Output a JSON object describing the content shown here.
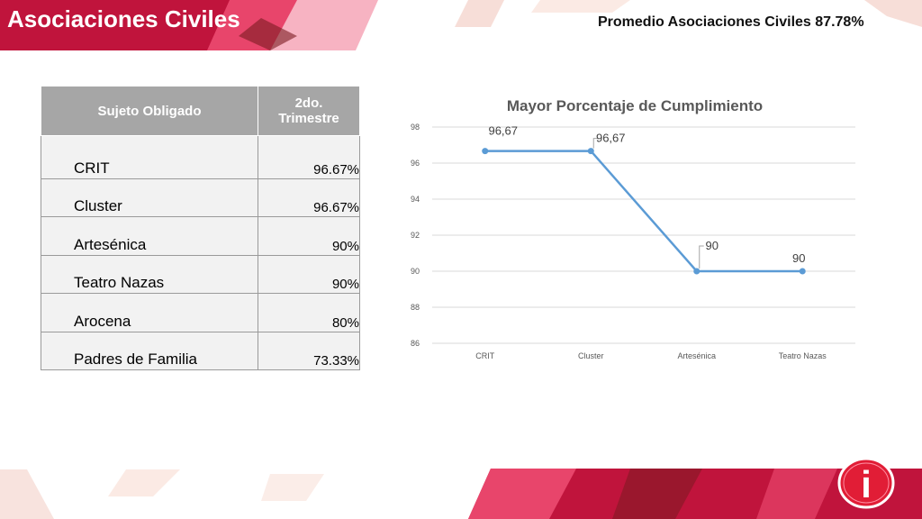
{
  "header": {
    "title": "Asociaciones Civiles",
    "subtitle": "Promedio  Asociaciones Civiles 87.78%"
  },
  "table": {
    "col1": "Sujeto Obligado",
    "col2_line1": "2do.",
    "col2_line2": "Trimestre",
    "rows": [
      {
        "name": "CRIT",
        "value": "96.67%"
      },
      {
        "name": "Cluster",
        "value": "96.67%"
      },
      {
        "name": "Artesénica",
        "value": "90%"
      },
      {
        "name": "Teatro Nazas",
        "value": "90%"
      },
      {
        "name": "Arocena",
        "value": "80%"
      },
      {
        "name": "Padres de Familia",
        "value": "73.33%"
      }
    ]
  },
  "chart_data": {
    "type": "line",
    "title": "Mayor Porcentaje de Cumplimiento",
    "categories": [
      "CRIT",
      "Cluster",
      "Artesénica",
      "Teatro Nazas"
    ],
    "values": [
      96.67,
      96.67,
      90,
      90
    ],
    "data_labels": [
      "96,67",
      "96,67",
      "90",
      "90"
    ],
    "ylim": [
      86,
      98
    ],
    "yticks": [
      "86",
      "88",
      "90",
      "92",
      "94",
      "96",
      "98"
    ],
    "grid": true,
    "line_color": "#5b9bd5"
  },
  "colors": {
    "banner_primary": "#c0143c",
    "banner_pink": "#e8456b",
    "banner_dark": "#7a1a20"
  },
  "logo": {
    "icon": "info-i-icon",
    "letter": "i"
  }
}
